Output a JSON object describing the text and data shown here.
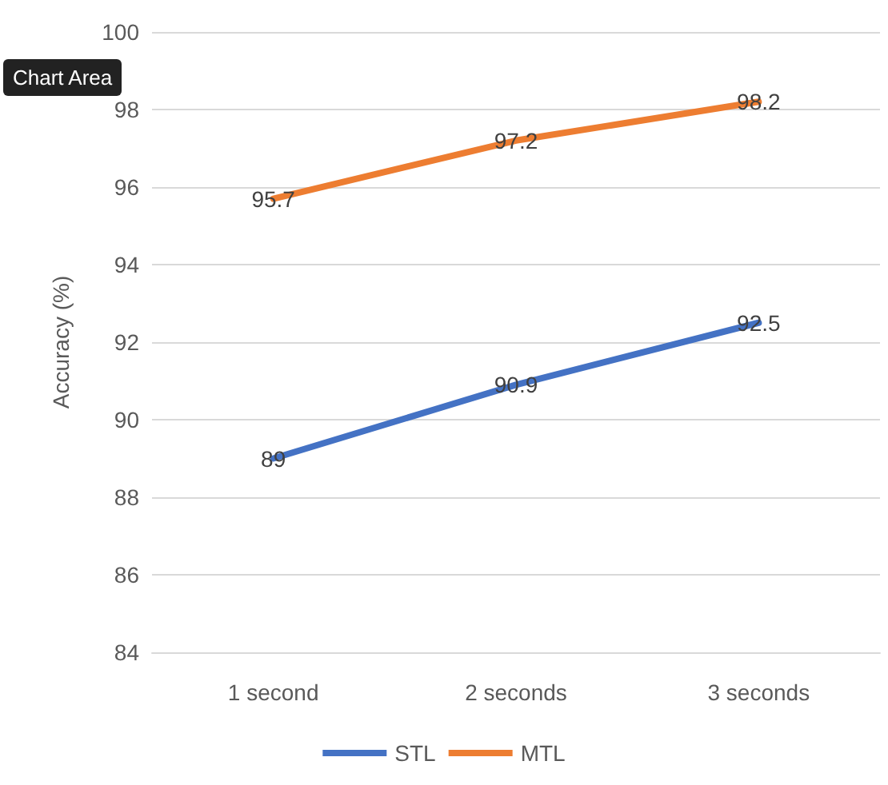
{
  "chart_data": {
    "type": "line",
    "ylabel": "Accuracy (%)",
    "annotations": [
      "Chart Area"
    ],
    "categories": [
      "1 second",
      "2 seconds",
      "3 seconds"
    ],
    "series": [
      {
        "name": "STL",
        "color": "#4472c4",
        "values": [
          89,
          90.9,
          92.5
        ]
      },
      {
        "name": "MTL",
        "color": "#ed7d31",
        "values": [
          95.7,
          97.2,
          98.2
        ]
      }
    ],
    "ylim": [
      84,
      100
    ],
    "yticks": [
      84,
      86,
      88,
      90,
      92,
      94,
      96,
      98,
      100
    ],
    "grid": "y",
    "legend": "bottom",
    "marker": "none",
    "data_labels": true,
    "line_style": "solid"
  }
}
